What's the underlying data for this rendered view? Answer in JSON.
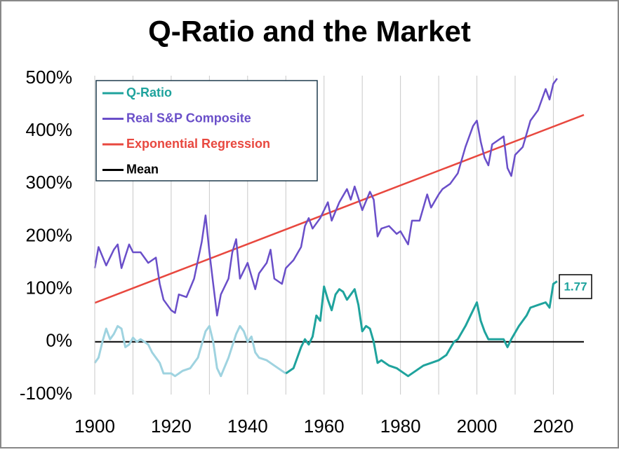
{
  "chart_data": {
    "type": "line",
    "title": "Q-Ratio and the Market",
    "xlim": [
      1900,
      2028
    ],
    "xticks": [
      1900,
      1920,
      1940,
      1960,
      1980,
      2000,
      2020
    ],
    "xgrid": [
      1900,
      1910,
      1920,
      1930,
      1940,
      1950,
      1960,
      1970,
      1980,
      1990,
      2000,
      2010,
      2020
    ],
    "ylim": [
      -100,
      500
    ],
    "yticks": [
      {
        "value": -100,
        "label": "-100%"
      },
      {
        "value": 0,
        "label": "0%"
      },
      {
        "value": 100,
        "label": "100%"
      },
      {
        "value": 200,
        "label": "200%"
      },
      {
        "value": 300,
        "label": "300%"
      },
      {
        "value": 400,
        "label": "400%"
      },
      {
        "value": 500,
        "label": "500%"
      }
    ],
    "legend": "upper left",
    "annotation": "1.77",
    "series": [
      {
        "name": "Q-Ratio",
        "color": "#1fa39d",
        "early_color": "#9fd3e0",
        "color_break": 1951,
        "x": [
          1900,
          1901,
          1902,
          1903,
          1904,
          1905,
          1906,
          1907,
          1908,
          1909,
          1910,
          1911,
          1912,
          1913,
          1914,
          1915,
          1917,
          1918,
          1920,
          1921,
          1923,
          1925,
          1927,
          1929,
          1930,
          1931,
          1932,
          1933,
          1935,
          1937,
          1938,
          1939,
          1940,
          1941,
          1942,
          1943,
          1945,
          1947,
          1949,
          1950,
          1952,
          1953,
          1954,
          1955,
          1956,
          1957,
          1958,
          1959,
          1960,
          1961,
          1962,
          1963,
          1964,
          1965,
          1966,
          1967,
          1968,
          1969,
          1970,
          1971,
          1972,
          1973,
          1974,
          1975,
          1977,
          1979,
          1980,
          1982,
          1984,
          1986,
          1988,
          1990,
          1992,
          1994,
          1995,
          1997,
          1999,
          2000,
          2001,
          2002,
          2003,
          2005,
          2007,
          2008,
          2009,
          2011,
          2013,
          2014,
          2016,
          2018,
          2019,
          2020,
          2021
        ],
        "values": [
          -40,
          -30,
          0,
          25,
          5,
          15,
          30,
          25,
          -10,
          -5,
          8,
          0,
          5,
          0,
          -5,
          -20,
          -40,
          -60,
          -60,
          -65,
          -55,
          -50,
          -30,
          20,
          30,
          0,
          -50,
          -65,
          -30,
          15,
          30,
          20,
          0,
          10,
          -20,
          -30,
          -35,
          -45,
          -55,
          -60,
          -50,
          -30,
          -10,
          5,
          -5,
          10,
          50,
          40,
          105,
          80,
          60,
          90,
          100,
          95,
          80,
          90,
          100,
          70,
          20,
          30,
          25,
          0,
          -40,
          -35,
          -45,
          -50,
          -55,
          -65,
          -55,
          -45,
          -40,
          -35,
          -25,
          0,
          5,
          30,
          60,
          75,
          40,
          20,
          5,
          5,
          5,
          -10,
          5,
          30,
          50,
          65,
          70,
          75,
          65,
          110,
          115
        ]
      },
      {
        "name": "Real S&P Composite",
        "color": "#6a4fc9",
        "x": [
          1900,
          1901,
          1903,
          1905,
          1906,
          1907,
          1909,
          1910,
          1912,
          1914,
          1916,
          1917,
          1918,
          1920,
          1921,
          1922,
          1924,
          1926,
          1928,
          1929,
          1930,
          1931,
          1932,
          1933,
          1935,
          1936,
          1937,
          1938,
          1940,
          1942,
          1943,
          1945,
          1946,
          1947,
          1949,
          1950,
          1952,
          1954,
          1955,
          1956,
          1957,
          1959,
          1961,
          1962,
          1964,
          1966,
          1967,
          1968,
          1970,
          1972,
          1973,
          1974,
          1975,
          1977,
          1979,
          1980,
          1982,
          1983,
          1985,
          1987,
          1988,
          1990,
          1991,
          1993,
          1995,
          1997,
          1999,
          2000,
          2001,
          2002,
          2003,
          2004,
          2006,
          2007,
          2008,
          2009,
          2010,
          2012,
          2014,
          2016,
          2018,
          2019,
          2020,
          2021
        ],
        "values": [
          140,
          180,
          145,
          175,
          185,
          140,
          185,
          170,
          170,
          150,
          160,
          110,
          80,
          60,
          55,
          90,
          85,
          120,
          190,
          240,
          170,
          110,
          50,
          90,
          120,
          170,
          195,
          120,
          150,
          100,
          130,
          150,
          175,
          120,
          110,
          140,
          155,
          180,
          220,
          235,
          215,
          235,
          265,
          230,
          265,
          290,
          270,
          295,
          250,
          285,
          270,
          200,
          215,
          220,
          205,
          210,
          185,
          230,
          230,
          280,
          255,
          280,
          290,
          300,
          320,
          370,
          410,
          420,
          380,
          350,
          335,
          375,
          385,
          390,
          330,
          315,
          355,
          370,
          420,
          440,
          480,
          460,
          490,
          500
        ]
      },
      {
        "name": "Exponential Regression",
        "color": "#e8483f",
        "x": [
          1900,
          2028
        ],
        "values": [
          74,
          431
        ]
      },
      {
        "name": "Mean",
        "color": "#000000",
        "x": [
          1900,
          2028
        ],
        "values": [
          0,
          0
        ]
      }
    ]
  }
}
